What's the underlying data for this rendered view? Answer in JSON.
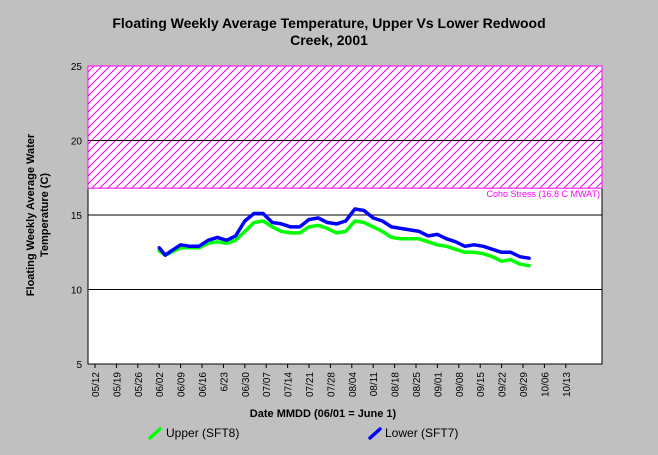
{
  "chart_data": {
    "type": "line",
    "title_line1": "Floating Weekly Average Temperature, Upper Vs Lower Redwood",
    "title_line2": "Creek, 2001",
    "xlabel": "Date MMDD (06/01 = June 1)",
    "ylabel_line1": "Floating Weekly Average Water",
    "ylabel_line2": "Temperature (C)",
    "ylim": [
      5,
      25
    ],
    "yticks": [
      "5",
      "10",
      "15",
      "20",
      "25"
    ],
    "xticks": [
      "05/12",
      "05/19",
      "05/26",
      "06/02",
      "06/09",
      "06/16",
      "6/23",
      "06/30",
      "07/07",
      "07/14",
      "07/21",
      "07/28",
      "08/04",
      "08/11",
      "08/18",
      "08/25",
      "09/01",
      "09/08",
      "09/15",
      "09/22",
      "09/29",
      "10/06",
      "10/13"
    ],
    "grid": "horizontal",
    "threshold": {
      "label": "Coho Stress (16.8 C MWAT)",
      "from": 16.8,
      "to": 25,
      "color": "#ff00ff"
    },
    "series": [
      {
        "name": "Upper (SFT8)",
        "color": "#00ff00",
        "x": [
          "06/02",
          "06/04",
          "06/06",
          "06/09",
          "06/12",
          "06/15",
          "06/18",
          "06/21",
          "06/24",
          "06/27",
          "06/30",
          "07/03",
          "07/06",
          "07/09",
          "07/12",
          "07/15",
          "07/18",
          "07/21",
          "07/24",
          "07/27",
          "07/30",
          "08/02",
          "08/05",
          "08/08",
          "08/11",
          "08/14",
          "08/17",
          "08/20",
          "08/23",
          "08/26",
          "08/29",
          "09/01",
          "09/04",
          "09/07",
          "09/10",
          "09/13",
          "09/16",
          "09/19",
          "09/22",
          "09/25",
          "09/28",
          "10/01"
        ],
        "values": [
          12.6,
          12.3,
          12.5,
          12.8,
          12.8,
          12.8,
          13.1,
          13.2,
          13.1,
          13.3,
          13.9,
          14.5,
          14.6,
          14.2,
          13.9,
          13.8,
          13.8,
          14.2,
          14.3,
          14.1,
          13.8,
          13.9,
          14.6,
          14.5,
          14.2,
          13.9,
          13.5,
          13.4,
          13.4,
          13.4,
          13.2,
          13.0,
          12.9,
          12.7,
          12.5,
          12.5,
          12.4,
          12.2,
          11.9,
          12.0,
          11.7,
          11.6
        ]
      },
      {
        "name": "Lower (SFT7)",
        "color": "#0000ff",
        "x": [
          "06/02",
          "06/04",
          "06/06",
          "06/09",
          "06/12",
          "06/15",
          "06/18",
          "06/21",
          "06/24",
          "06/27",
          "06/30",
          "07/03",
          "07/06",
          "07/09",
          "07/12",
          "07/15",
          "07/18",
          "07/21",
          "07/24",
          "07/27",
          "07/30",
          "08/02",
          "08/05",
          "08/08",
          "08/11",
          "08/14",
          "08/17",
          "08/20",
          "08/23",
          "08/26",
          "08/29",
          "09/01",
          "09/04",
          "09/07",
          "09/10",
          "09/13",
          "09/16",
          "09/19",
          "09/22",
          "09/25",
          "09/28",
          "10/01"
        ],
        "values": [
          12.8,
          12.3,
          12.6,
          13.0,
          12.9,
          12.9,
          13.3,
          13.5,
          13.3,
          13.6,
          14.6,
          15.1,
          15.1,
          14.5,
          14.4,
          14.2,
          14.2,
          14.7,
          14.8,
          14.5,
          14.4,
          14.6,
          15.4,
          15.3,
          14.8,
          14.6,
          14.2,
          14.1,
          14.0,
          13.9,
          13.6,
          13.7,
          13.4,
          13.2,
          12.9,
          13.0,
          12.9,
          12.7,
          12.5,
          12.5,
          12.2,
          12.1
        ]
      }
    ]
  }
}
